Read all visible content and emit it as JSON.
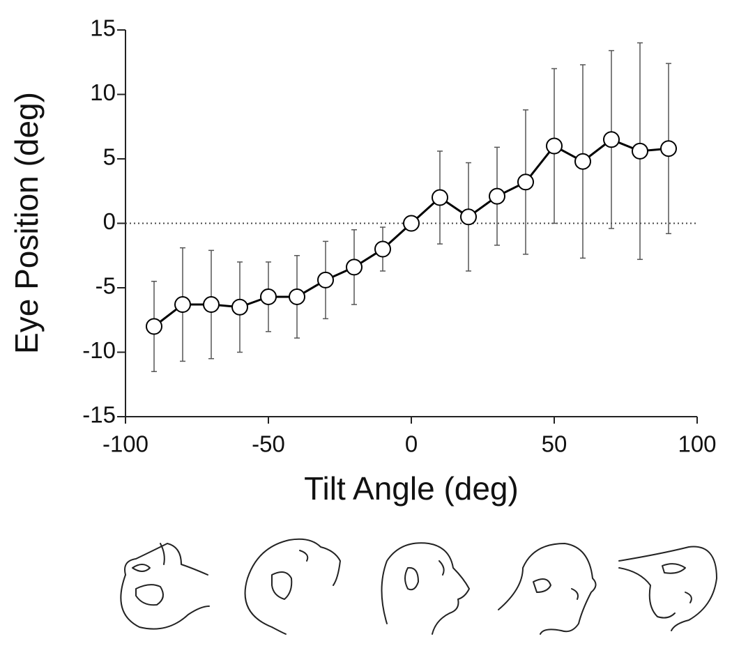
{
  "chart_data": {
    "type": "line",
    "x_label": "Tilt Angle (deg)",
    "y_label": "Eye Position (deg)",
    "x": [
      -90,
      -80,
      -70,
      -60,
      -50,
      -40,
      -30,
      -20,
      -10,
      0,
      10,
      20,
      30,
      40,
      50,
      60,
      70,
      80,
      90
    ],
    "series": [
      {
        "color": "#000000",
        "values": [
          -8.0,
          -6.3,
          -6.3,
          -6.5,
          -5.7,
          -5.7,
          -4.4,
          -3.4,
          -2.0,
          0,
          2.0,
          0.5,
          2.1,
          3.2,
          6.0,
          4.8,
          6.5,
          5.6,
          5.8
        ],
        "errors": [
          3.5,
          4.4,
          4.2,
          3.5,
          2.7,
          3.2,
          3.0,
          2.9,
          1.7,
          0,
          3.6,
          4.2,
          3.8,
          5.6,
          6.0,
          7.5,
          6.9,
          8.4,
          6.6
        ]
      }
    ],
    "xlim": [
      -100,
      100
    ],
    "xticks": [
      -100,
      -50,
      0,
      50,
      100
    ],
    "ylim": [
      -15,
      15
    ],
    "yticks": [
      -15,
      -10,
      -5,
      0,
      5,
      10,
      15
    ],
    "reference_line": {
      "y": 0,
      "style": "dotted"
    }
  }
}
